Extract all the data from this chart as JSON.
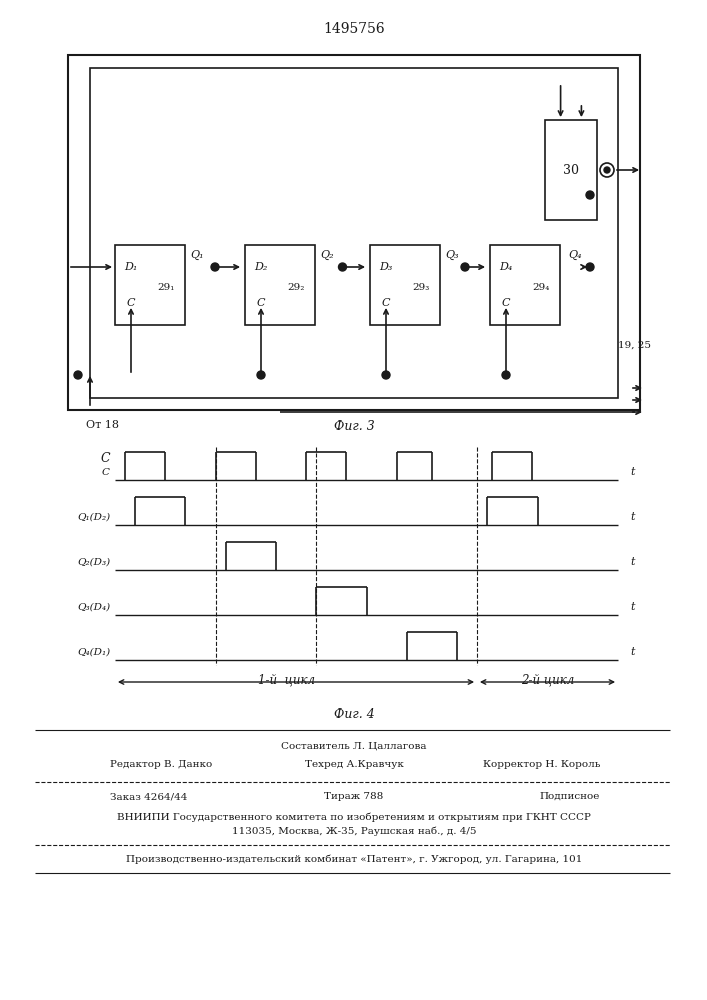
{
  "title": "1495756",
  "fig3_label": "Фиг. 3",
  "fig4_label": "Фиг. 4",
  "waveform_labels": [
    "C",
    "Q₁(D₂)",
    "Q₂(D₃)",
    "Q₃(D₄)",
    "Q₄(D₁)"
  ],
  "footer": {
    "line1_center": "Составитель Л. Цаллагова",
    "line2_left": "Редактор В. Данко",
    "line2_center": "Техред А.Кравчук",
    "line2_right": "Корректор Н. Король",
    "line3_left": "Заказ 4264/44",
    "line3_center": "Тираж 788",
    "line3_right": "Подписное",
    "line4": "ВНИИПИ Государственного комитета по изобретениям и открытиям при ГКНТ СССР",
    "line5": "113035, Москва, Ж-35, Раушская наб., д. 4/5",
    "line6": "Производственно-издательский комбинат «Патент», г. Ужгород, ул. Гагарина, 101"
  }
}
